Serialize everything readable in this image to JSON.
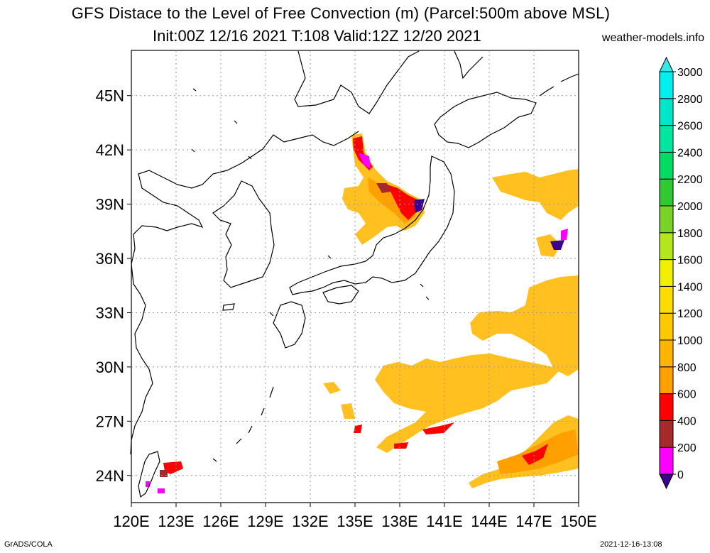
{
  "header": {
    "title": "GFS Distace to the Level of Free Convection (m) (Parcel:500m above MSL)",
    "subtitle": "Init:00Z 12/16 2021 T:108 Valid:12Z 12/20 2021",
    "site": "weather-models.info"
  },
  "footer": {
    "left": "GrADS/COLA",
    "right": "2021-12-16-13:08"
  },
  "map": {
    "lon_range": [
      120,
      150
    ],
    "lat_range": [
      22.5,
      47.5
    ],
    "lon_ticks": [
      "120E",
      "123E",
      "126E",
      "129E",
      "132E",
      "135E",
      "138E",
      "141E",
      "144E",
      "147E",
      "150E"
    ],
    "lat_ticks": [
      "24N",
      "27N",
      "30N",
      "33N",
      "36N",
      "39N",
      "42N",
      "45N"
    ]
  },
  "colorbar": {
    "levels": [
      "0",
      "200",
      "400",
      "600",
      "800",
      "1000",
      "1200",
      "1400",
      "1600",
      "1800",
      "2000",
      "2200",
      "2400",
      "2600",
      "2800",
      "3000"
    ],
    "colors": [
      "#3c0090",
      "#ff00ff",
      "#a52a2a",
      "#ff0000",
      "#ff9f00",
      "#ffb400",
      "#ffc800",
      "#ffdc00",
      "#f0f000",
      "#b4e61e",
      "#78d228",
      "#32c832",
      "#00dc64",
      "#00e6a0",
      "#00e6c8",
      "#00f0f0",
      "#38e8e8"
    ]
  }
}
